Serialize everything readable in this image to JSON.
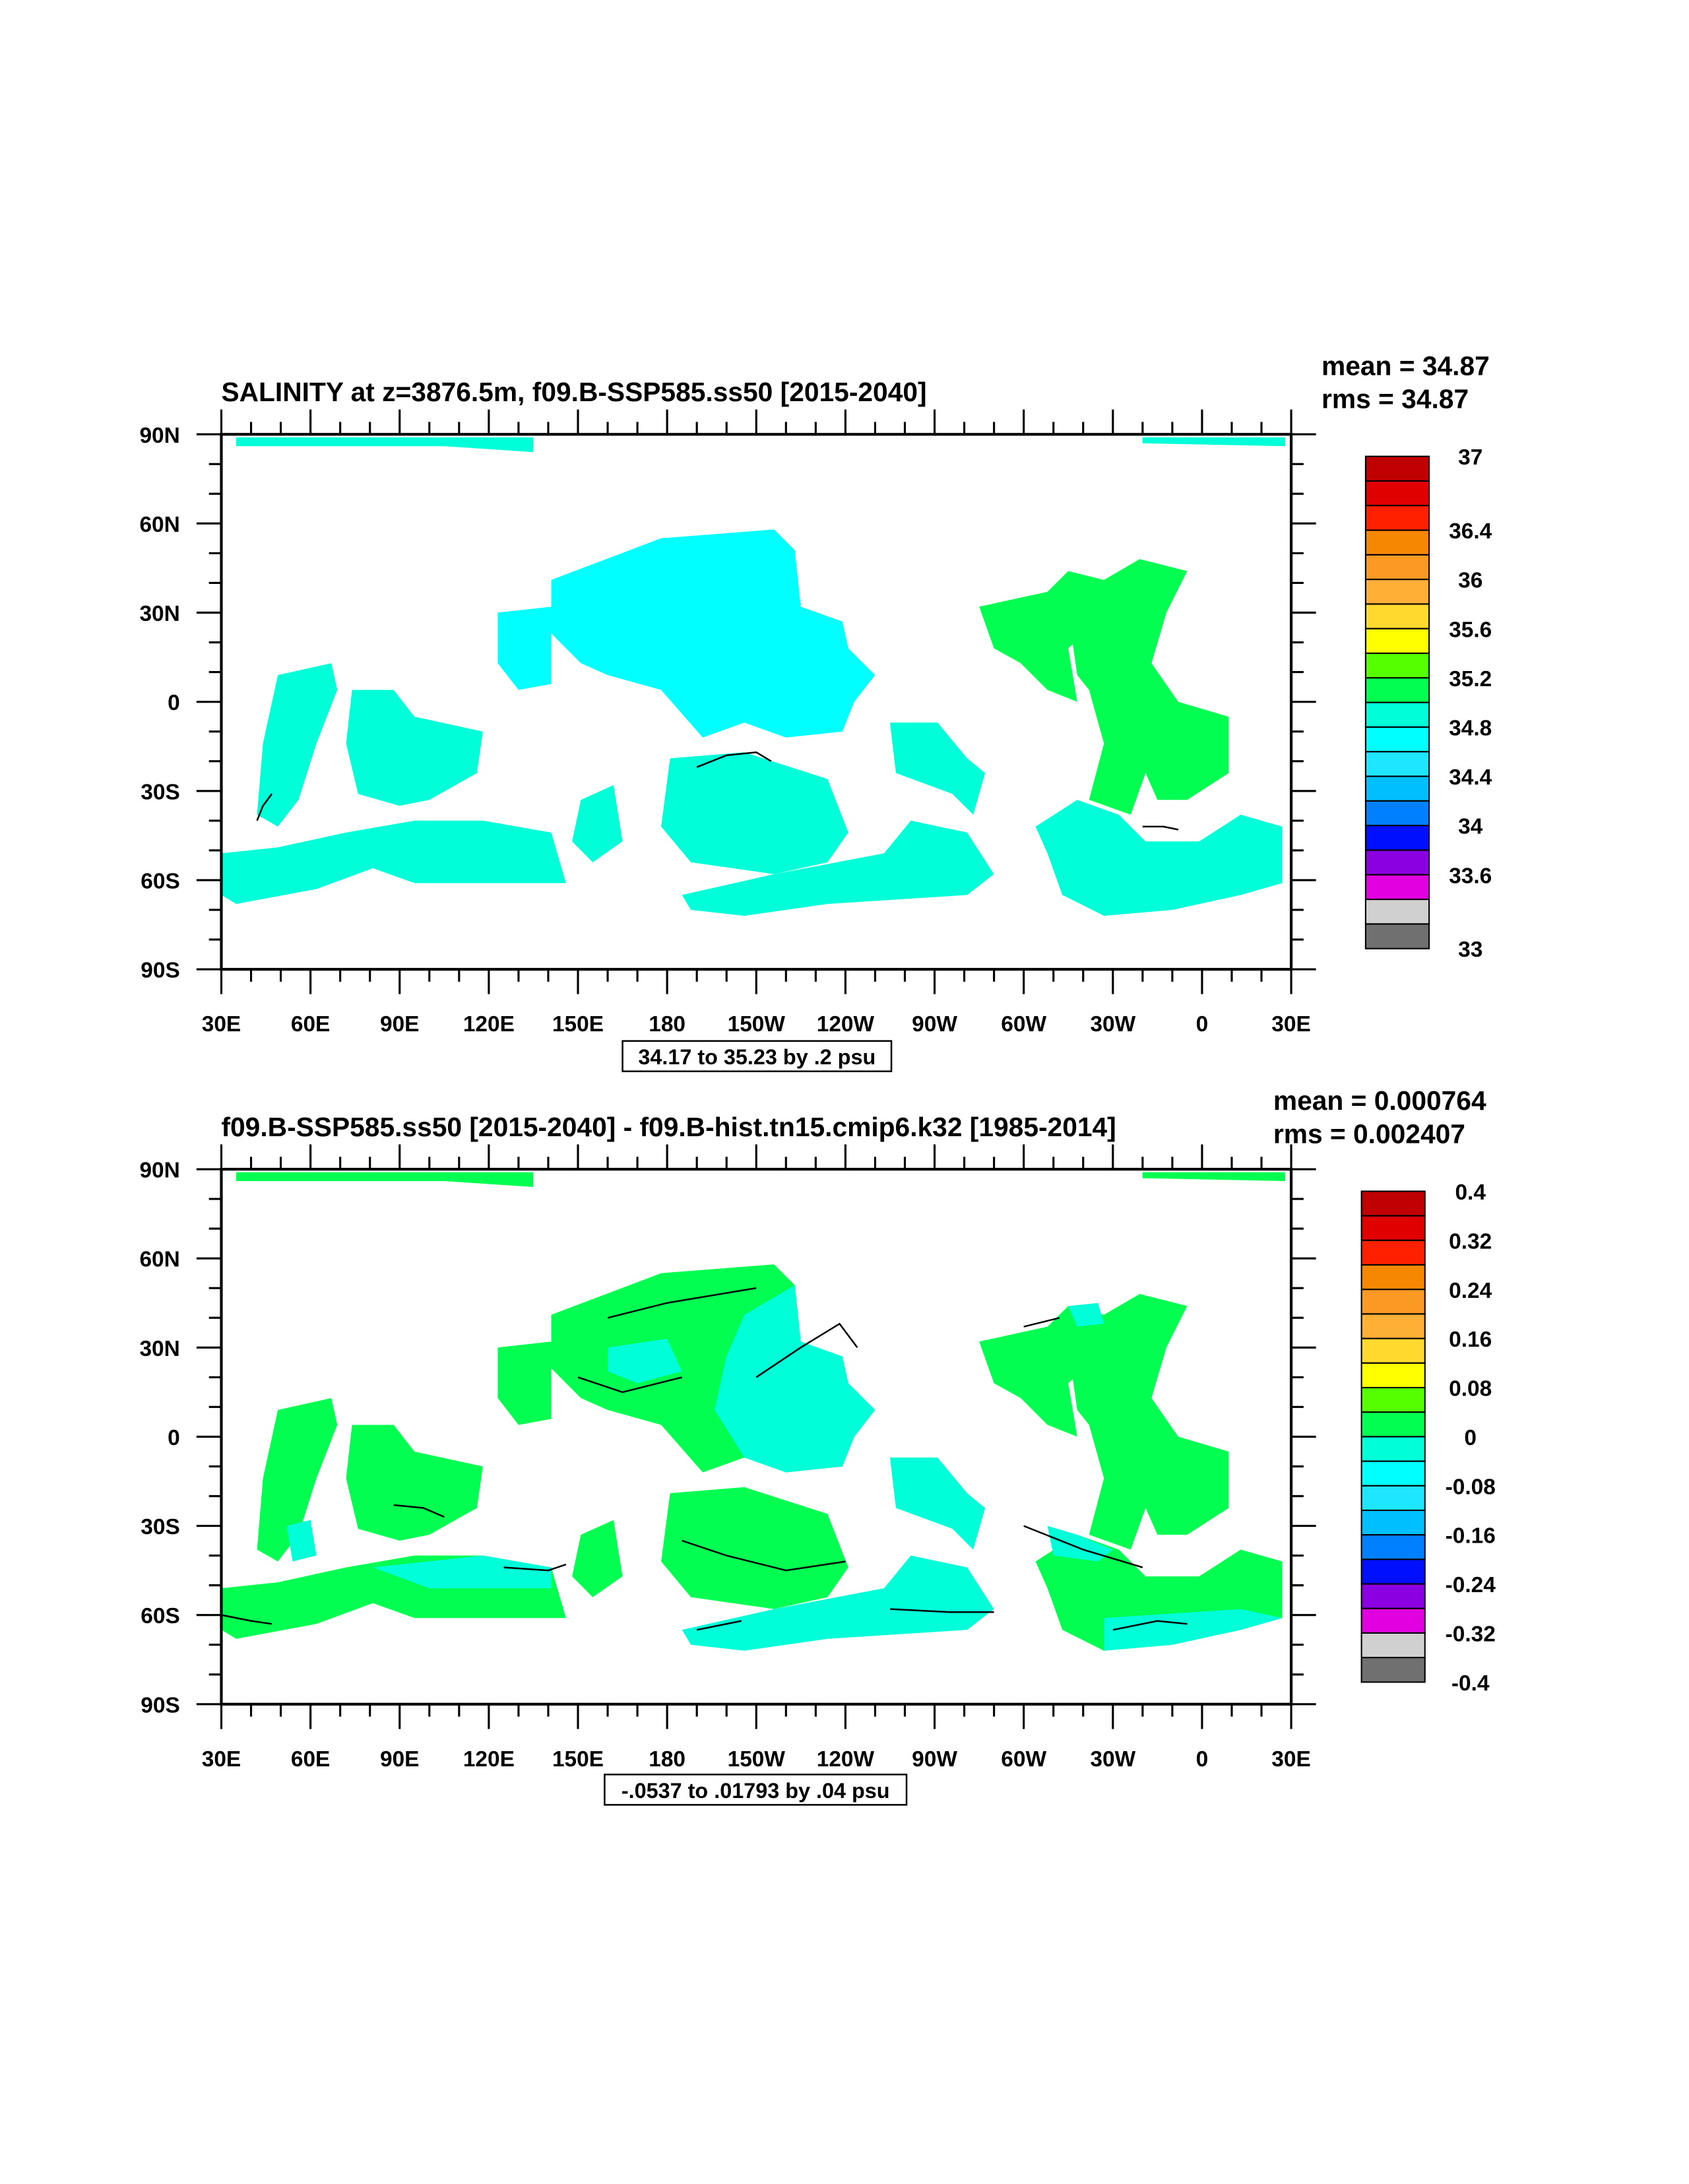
{
  "chart_data": [
    {
      "type": "heatmap",
      "title": "SALINITY at z=3876.5m, f09.B-SSP585.ss50 [2015-2040]",
      "stats": {
        "mean": "mean = 34.87",
        "rms": "rms = 34.87"
      },
      "contour_info": "34.17 to 35.23 by .2 psu",
      "xlim": [
        30,
        390
      ],
      "ylim": [
        -90,
        90
      ],
      "x_ticks": [
        "30E",
        "60E",
        "90E",
        "120E",
        "150E",
        "180",
        "150W",
        "120W",
        "90W",
        "60W",
        "30W",
        "0",
        "30E"
      ],
      "y_ticks": [
        "90N",
        "60N",
        "30N",
        "0",
        "30S",
        "60S",
        "90S"
      ],
      "colorbar": {
        "range": [
          33,
          37
        ],
        "colors": [
          "#c00000",
          "#e00000",
          "#ff2000",
          "#f58800",
          "#fa9a25",
          "#fdb035",
          "#ffd92e",
          "#ffff00",
          "#55ff00",
          "#00ff50",
          "#00ffd8",
          "#00ffff",
          "#1ee6ff",
          "#00bfff",
          "#0080ff",
          "#0010ff",
          "#8a00e0",
          "#e000e0",
          "#d0d0d0",
          "#707070"
        ],
        "labels": [
          {
            "v": 37,
            "t": "37"
          },
          {
            "v": 36.4,
            "t": "36.4"
          },
          {
            "v": 36,
            "t": "36"
          },
          {
            "v": 35.6,
            "t": "35.6"
          },
          {
            "v": 35.2,
            "t": "35.2"
          },
          {
            "v": 34.8,
            "t": "34.8"
          },
          {
            "v": 34.4,
            "t": "34.4"
          },
          {
            "v": 34,
            "t": "34"
          },
          {
            "v": 33.6,
            "t": "33.6"
          },
          {
            "v": 33,
            "t": "33"
          }
        ]
      },
      "region_colors": {
        "arctic_w": "#00ffd8",
        "arctic_e": "#00ffd8",
        "n_pacific": "#00ffff",
        "w_pacific": "#00ffff",
        "arabian": "#00ffd8",
        "c_indian": "#00ffd8",
        "southern_io": "#00ffd8",
        "tasman": "#00ffd8",
        "s_pacific": "#00ffd8",
        "s_pacific_band": "#00ffd8",
        "e_pacific": "#00ffd8",
        "s_atlantic": "#00ffd8",
        "n_atlantic_w": "#00ff50",
        "n_atlantic_e": "#00ff50"
      },
      "overlays": [],
      "contours": [
        [
          [
            190,
            -22
          ],
          [
            200,
            -18
          ],
          [
            210,
            -17
          ],
          [
            215,
            -20
          ]
        ],
        [
          [
            42,
            -40
          ],
          [
            44,
            -35
          ],
          [
            47,
            -31
          ]
        ],
        [
          [
            340,
            -42
          ],
          [
            347,
            -42
          ],
          [
            352,
            -43
          ]
        ]
      ]
    },
    {
      "type": "heatmap",
      "title": "f09.B-SSP585.ss50 [2015-2040] - f09.B-hist.tn15.cmip6.k32 [1985-2014]",
      "stats": {
        "mean": "mean = 0.000764",
        "rms": "rms = 0.002407"
      },
      "contour_info": "-.0537 to .01793 by .04 psu",
      "xlim": [
        30,
        390
      ],
      "ylim": [
        -90,
        90
      ],
      "x_ticks": [
        "30E",
        "60E",
        "90E",
        "120E",
        "150E",
        "180",
        "150W",
        "120W",
        "90W",
        "60W",
        "30W",
        "0",
        "30E"
      ],
      "y_ticks": [
        "90N",
        "60N",
        "30N",
        "0",
        "30S",
        "60S",
        "90S"
      ],
      "colorbar": {
        "range": [
          -0.4,
          0.4
        ],
        "colors": [
          "#c00000",
          "#e00000",
          "#ff2000",
          "#f58800",
          "#fa9a25",
          "#fdb035",
          "#ffd92e",
          "#ffff00",
          "#55ff00",
          "#00ff50",
          "#00ffd8",
          "#00ffff",
          "#1ee6ff",
          "#00bfff",
          "#0080ff",
          "#0010ff",
          "#8a00e0",
          "#e000e0",
          "#d0d0d0",
          "#707070"
        ],
        "labels": [
          {
            "v": 0.4,
            "t": "0.4"
          },
          {
            "v": 0.32,
            "t": "0.32"
          },
          {
            "v": 0.24,
            "t": "0.24"
          },
          {
            "v": 0.16,
            "t": "0.16"
          },
          {
            "v": 0.08,
            "t": "0.08"
          },
          {
            "v": 0,
            "t": "0"
          },
          {
            "v": -0.08,
            "t": "-0.08"
          },
          {
            "v": -0.16,
            "t": "-0.16"
          },
          {
            "v": -0.24,
            "t": "-0.24"
          },
          {
            "v": -0.32,
            "t": "-0.32"
          },
          {
            "v": -0.4,
            "t": "-0.4"
          }
        ]
      },
      "region_colors": {
        "arctic_w": "#00ff50",
        "arctic_e": "#00ff50",
        "n_pacific": "#00ff50",
        "w_pacific": "#00ff50",
        "arabian": "#00ff50",
        "c_indian": "#00ff50",
        "southern_io": "#00ff50",
        "tasman": "#00ff50",
        "s_pacific": "#00ff50",
        "s_pacific_band": "#00ffd8",
        "e_pacific": "#00ffd8",
        "s_atlantic": "#00ff50",
        "n_atlantic_w": "#00ff50",
        "n_atlantic_e": "#00ff50"
      },
      "overlays": [
        {
          "color": "#00ffd8",
          "points": [
            [
              206,
              41
            ],
            [
              223,
              51
            ],
            [
              225,
              32
            ],
            [
              239,
              27
            ],
            [
              241,
              18
            ],
            [
              250,
              9
            ],
            [
              243,
              0
            ],
            [
              239,
              -10
            ],
            [
              220,
              -12
            ],
            [
              206,
              -7
            ],
            [
              196,
              9
            ],
            [
              200,
              27
            ]
          ]
        },
        {
          "color": "#00ffd8",
          "points": [
            [
              160,
              30
            ],
            [
              180,
              33
            ],
            [
              185,
              22
            ],
            [
              170,
              18
            ],
            [
              160,
              22
            ]
          ]
        },
        {
          "color": "#00ffd8",
          "points": [
            [
              81,
              -44
            ],
            [
              118,
              -40
            ],
            [
              141,
              -44
            ],
            [
              141,
              -51
            ],
            [
              100,
              -51
            ]
          ]
        },
        {
          "color": "#00ffd8",
          "points": [
            [
              327,
              -61
            ],
            [
              373,
              -58
            ],
            [
              387,
              -61
            ],
            [
              373,
              -65
            ],
            [
              350,
              -70
            ],
            [
              327,
              -72
            ]
          ]
        },
        {
          "color": "#00ffd8",
          "points": [
            [
              308,
              -30
            ],
            [
              318,
              -33
            ],
            [
              330,
              -38
            ],
            [
              325,
              -42
            ],
            [
              310,
              -40
            ]
          ]
        },
        {
          "color": "#00ffd8",
          "points": [
            [
              52,
              -30
            ],
            [
              60,
              -28
            ],
            [
              62,
              -40
            ],
            [
              54,
              -42
            ]
          ]
        },
        {
          "color": "#00ffd8",
          "points": [
            [
              315,
              44
            ],
            [
              325,
              45
            ],
            [
              327,
              38
            ],
            [
              318,
              37
            ]
          ]
        }
      ],
      "contours": [
        [
          [
            185,
            -35
          ],
          [
            200,
            -40
          ],
          [
            220,
            -45
          ],
          [
            240,
            -42
          ]
        ],
        [
          [
            160,
            40
          ],
          [
            180,
            45
          ],
          [
            210,
            50
          ]
        ],
        [
          [
            150,
            20
          ],
          [
            165,
            15
          ],
          [
            185,
            20
          ]
        ],
        [
          [
            300,
            37
          ],
          [
            312,
            40
          ]
        ],
        [
          [
            300,
            -30
          ],
          [
            320,
            -38
          ],
          [
            340,
            -44
          ]
        ],
        [
          [
            30,
            -60
          ],
          [
            40,
            -62
          ],
          [
            47,
            -63
          ]
        ],
        [
          [
            125,
            -44
          ],
          [
            140,
            -45
          ],
          [
            146,
            -43
          ]
        ],
        [
          [
            88,
            -23
          ],
          [
            98,
            -24
          ],
          [
            105,
            -27
          ]
        ],
        [
          [
            210,
            20
          ],
          [
            225,
            30
          ],
          [
            238,
            38
          ],
          [
            244,
            30
          ]
        ],
        [
          [
            190,
            -65
          ],
          [
            205,
            -62
          ]
        ],
        [
          [
            255,
            -58
          ],
          [
            275,
            -59
          ],
          [
            290,
            -59
          ]
        ],
        [
          [
            330,
            -65
          ],
          [
            345,
            -62
          ],
          [
            355,
            -63
          ]
        ]
      ]
    }
  ],
  "ocean_regions": {
    "arctic_w": [
      [
        35,
        89
      ],
      [
        135,
        89
      ],
      [
        135,
        84
      ],
      [
        105,
        86
      ],
      [
        35,
        86
      ]
    ],
    "arctic_e": [
      [
        340,
        89
      ],
      [
        388,
        89
      ],
      [
        388,
        86
      ],
      [
        340,
        87
      ]
    ],
    "n_pacific": [
      [
        141,
        41
      ],
      [
        178,
        55
      ],
      [
        216,
        58
      ],
      [
        223,
        51
      ],
      [
        225,
        32
      ],
      [
        239,
        27
      ],
      [
        241,
        18
      ],
      [
        250,
        9
      ],
      [
        243,
        0
      ],
      [
        239,
        -10
      ],
      [
        220,
        -12
      ],
      [
        206,
        -7
      ],
      [
        192,
        -12
      ],
      [
        178,
        4
      ],
      [
        160,
        9
      ],
      [
        151,
        13
      ],
      [
        141,
        23
      ]
    ],
    "w_pacific": [
      [
        123,
        30
      ],
      [
        141,
        32
      ],
      [
        141,
        6
      ],
      [
        130,
        4
      ],
      [
        123,
        13
      ]
    ],
    "arabian": [
      [
        49,
        9
      ],
      [
        67,
        13
      ],
      [
        69,
        4
      ],
      [
        62,
        -14
      ],
      [
        56,
        -33
      ],
      [
        49,
        -42
      ],
      [
        42,
        -38
      ],
      [
        44,
        -14
      ]
    ],
    "c_indian": [
      [
        74,
        4
      ],
      [
        88,
        4
      ],
      [
        95,
        -5
      ],
      [
        118,
        -10
      ],
      [
        116,
        -24
      ],
      [
        100,
        -33
      ],
      [
        90,
        -35
      ],
      [
        76,
        -31
      ],
      [
        72,
        -14
      ]
    ],
    "southern_io": [
      [
        30,
        -51
      ],
      [
        49,
        -49
      ],
      [
        72,
        -44
      ],
      [
        95,
        -40
      ],
      [
        118,
        -40
      ],
      [
        141,
        -44
      ],
      [
        146,
        -61
      ],
      [
        118,
        -61
      ],
      [
        95,
        -61
      ],
      [
        81,
        -56
      ],
      [
        62,
        -63
      ],
      [
        35,
        -68
      ],
      [
        30,
        -65
      ]
    ],
    "tasman": [
      [
        151,
        -33
      ],
      [
        162,
        -28
      ],
      [
        165,
        -47
      ],
      [
        155,
        -54
      ],
      [
        148,
        -47
      ]
    ],
    "s_pacific": [
      [
        181,
        -19
      ],
      [
        206,
        -17
      ],
      [
        234,
        -26
      ],
      [
        241,
        -44
      ],
      [
        234,
        -54
      ],
      [
        216,
        -58
      ],
      [
        188,
        -54
      ],
      [
        178,
        -42
      ]
    ],
    "s_pacific_band": [
      [
        185,
        -65
      ],
      [
        216,
        -58
      ],
      [
        253,
        -51
      ],
      [
        262,
        -40
      ],
      [
        281,
        -44
      ],
      [
        290,
        -58
      ],
      [
        281,
        -65
      ],
      [
        234,
        -68
      ],
      [
        206,
        -72
      ],
      [
        188,
        -70
      ]
    ],
    "e_pacific": [
      [
        255,
        -7
      ],
      [
        271,
        -7
      ],
      [
        281,
        -19
      ],
      [
        287,
        -24
      ],
      [
        283,
        -38
      ],
      [
        276,
        -31
      ],
      [
        257,
        -24
      ]
    ],
    "s_atlantic": [
      [
        304,
        -42
      ],
      [
        318,
        -33
      ],
      [
        332,
        -38
      ],
      [
        341,
        -47
      ],
      [
        359,
        -47
      ],
      [
        373,
        -38
      ],
      [
        387,
        -42
      ],
      [
        387,
        -61
      ],
      [
        373,
        -65
      ],
      [
        350,
        -70
      ],
      [
        327,
        -72
      ],
      [
        313,
        -65
      ],
      [
        308,
        -51
      ]
    ],
    "n_atlantic_w": [
      [
        285,
        32
      ],
      [
        308,
        37
      ],
      [
        315,
        44
      ],
      [
        327,
        41
      ],
      [
        325,
        27
      ],
      [
        315,
        18
      ],
      [
        318,
        0
      ],
      [
        308,
        4
      ],
      [
        299,
        13
      ],
      [
        290,
        18
      ]
    ],
    "n_atlantic_e": [
      [
        315,
        30
      ],
      [
        327,
        41
      ],
      [
        339,
        48
      ],
      [
        355,
        44
      ],
      [
        348,
        30
      ],
      [
        343,
        13
      ],
      [
        352,
        0
      ],
      [
        369,
        -5
      ],
      [
        369,
        -24
      ],
      [
        355,
        -33
      ],
      [
        345,
        -33
      ],
      [
        341,
        -24
      ],
      [
        336,
        -38
      ],
      [
        322,
        -33
      ],
      [
        327,
        -14
      ],
      [
        322,
        4
      ],
      [
        318,
        9
      ]
    ]
  }
}
